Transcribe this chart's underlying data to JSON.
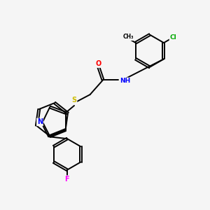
{
  "background_color": "#f5f5f5",
  "atom_colors": {
    "Cl": "#00aa00",
    "O": "#ff0000",
    "N": "#0000ff",
    "S": "#ccbb00",
    "F": "#ff00ff",
    "C": "#000000",
    "H": "#444444"
  },
  "bond_lw": 1.4,
  "dbo": 0.055
}
